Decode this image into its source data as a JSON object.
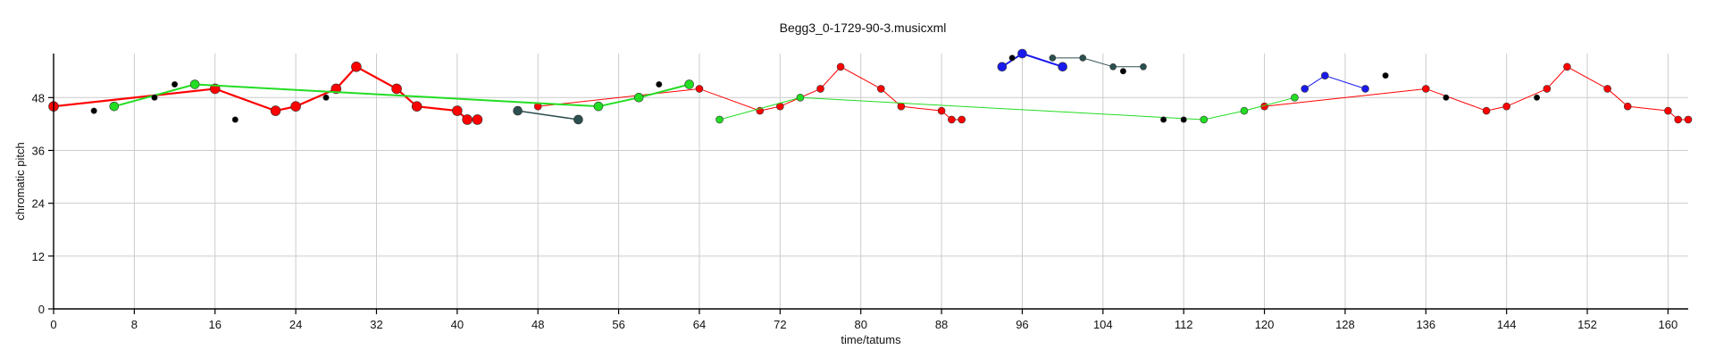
{
  "chart_data": {
    "type": "scatter",
    "title": "Begg3_0-1729-90-3.musicxml",
    "xlabel": "time/tatums",
    "ylabel": "chromatic pitch",
    "xlim": [
      0,
      162
    ],
    "ylim": [
      0,
      58
    ],
    "x_ticks": [
      0,
      8,
      16,
      24,
      32,
      40,
      48,
      56,
      64,
      72,
      80,
      88,
      96,
      104,
      112,
      120,
      128,
      136,
      144,
      152,
      160
    ],
    "y_ticks": [
      0,
      12,
      24,
      36,
      48
    ],
    "grid": true,
    "series": [
      {
        "color": "#ff0000",
        "line_width": 2.2,
        "marker_r": 5.5,
        "points": [
          [
            0,
            46
          ],
          [
            16,
            50
          ],
          [
            22,
            45
          ],
          [
            24,
            46
          ],
          [
            28,
            50
          ],
          [
            30,
            55
          ],
          [
            34,
            50
          ],
          [
            36,
            46
          ],
          [
            40,
            45
          ],
          [
            41,
            43
          ],
          [
            42,
            43
          ]
        ]
      },
      {
        "color": "#ff0000",
        "line_width": 1,
        "marker_r": 4,
        "points": [
          [
            48,
            46
          ],
          [
            64,
            50
          ],
          [
            70,
            45
          ],
          [
            72,
            46
          ],
          [
            76,
            50
          ],
          [
            78,
            55
          ],
          [
            82,
            50
          ],
          [
            84,
            46
          ],
          [
            88,
            45
          ],
          [
            89,
            43
          ],
          [
            90,
            43
          ]
        ]
      },
      {
        "color": "#ff0000",
        "line_width": 1,
        "marker_r": 4,
        "points": [
          [
            120,
            46
          ],
          [
            136,
            50
          ],
          [
            142,
            45
          ],
          [
            144,
            46
          ],
          [
            148,
            50
          ],
          [
            150,
            55
          ],
          [
            154,
            50
          ],
          [
            156,
            46
          ],
          [
            160,
            45
          ],
          [
            161,
            43
          ],
          [
            162,
            43
          ]
        ]
      },
      {
        "color": "#22dd22",
        "line_width": 2,
        "marker_r": 5,
        "points": [
          [
            6,
            46
          ],
          [
            14,
            51
          ],
          [
            54,
            46
          ],
          [
            58,
            48
          ],
          [
            63,
            51
          ]
        ]
      },
      {
        "color": "#22dd22",
        "line_width": 1,
        "marker_r": 4,
        "points": [
          [
            66,
            43
          ],
          [
            74,
            48
          ],
          [
            114,
            43
          ],
          [
            118,
            45
          ],
          [
            123,
            48
          ]
        ]
      },
      {
        "color": "#2c4f4f",
        "line_width": 1.5,
        "marker_r": 5,
        "points": [
          [
            46,
            45
          ],
          [
            52,
            43
          ]
        ]
      },
      {
        "color": "#1a1aee",
        "line_width": 2,
        "marker_r": 5,
        "points": [
          [
            94,
            55
          ],
          [
            96,
            58
          ],
          [
            100,
            55
          ]
        ]
      },
      {
        "color": "#1a1aee",
        "line_width": 1,
        "marker_r": 4,
        "points": [
          [
            124,
            50
          ],
          [
            126,
            53
          ],
          [
            130,
            50
          ]
        ]
      },
      {
        "color": "#2c4f4f",
        "line_width": 1,
        "marker_r": 3.5,
        "points": [
          [
            99,
            57
          ],
          [
            102,
            57
          ],
          [
            105,
            55
          ],
          [
            108,
            55
          ]
        ]
      },
      {
        "color": "#000000",
        "line_width": 0,
        "marker_r": 3.2,
        "points": [
          [
            4,
            45
          ],
          [
            10,
            48
          ],
          [
            12,
            51
          ],
          [
            18,
            43
          ],
          [
            27,
            48
          ],
          [
            60,
            51
          ],
          [
            95,
            57
          ],
          [
            106,
            54
          ],
          [
            110,
            43
          ],
          [
            112,
            43
          ],
          [
            138,
            48
          ],
          [
            132,
            53
          ],
          [
            147,
            48
          ]
        ]
      }
    ]
  }
}
